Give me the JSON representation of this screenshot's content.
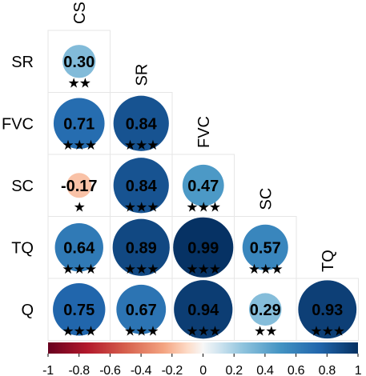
{
  "chart_data": {
    "type": "heatmap",
    "style": "lower-triangle correlation plot with sized circles",
    "variables": [
      "CS",
      "SR",
      "FVC",
      "SC",
      "TQ",
      "Q"
    ],
    "cells": [
      {
        "row": "SR",
        "col": "CS",
        "value": 0.3,
        "label": "0.30",
        "stars": "★★"
      },
      {
        "row": "FVC",
        "col": "CS",
        "value": 0.71,
        "label": "0.71",
        "stars": "★★★"
      },
      {
        "row": "FVC",
        "col": "SR",
        "value": 0.84,
        "label": "0.84",
        "stars": "★★★"
      },
      {
        "row": "SC",
        "col": "CS",
        "value": -0.17,
        "label": "-0.17",
        "stars": "★"
      },
      {
        "row": "SC",
        "col": "SR",
        "value": 0.84,
        "label": "0.84",
        "stars": "★★★"
      },
      {
        "row": "SC",
        "col": "FVC",
        "value": 0.47,
        "label": "0.47",
        "stars": "★★★"
      },
      {
        "row": "TQ",
        "col": "CS",
        "value": 0.64,
        "label": "0.64",
        "stars": "★★★"
      },
      {
        "row": "TQ",
        "col": "SR",
        "value": 0.89,
        "label": "0.89",
        "stars": "★★★"
      },
      {
        "row": "TQ",
        "col": "FVC",
        "value": 0.99,
        "label": "0.99",
        "stars": "★★★"
      },
      {
        "row": "TQ",
        "col": "SC",
        "value": 0.57,
        "label": "0.57",
        "stars": "★★★"
      },
      {
        "row": "Q",
        "col": "CS",
        "value": 0.75,
        "label": "0.75",
        "stars": "★★★"
      },
      {
        "row": "Q",
        "col": "SR",
        "value": 0.67,
        "label": "0.67",
        "stars": "★★★"
      },
      {
        "row": "Q",
        "col": "FVC",
        "value": 0.94,
        "label": "0.94",
        "stars": "★★★"
      },
      {
        "row": "Q",
        "col": "SC",
        "value": 0.29,
        "label": "0.29",
        "stars": "★★"
      },
      {
        "row": "Q",
        "col": "TQ",
        "value": 0.93,
        "label": "0.93",
        "stars": "★★★"
      }
    ],
    "colorbar": {
      "range": [
        -1,
        1
      ],
      "ticks": [
        "-1",
        "-0.8",
        "-0.6",
        "-0.4",
        "-0.2",
        "0",
        "0.2",
        "0.4",
        "0.6",
        "0.8",
        "1"
      ],
      "tick_values": [
        -1,
        -0.8,
        -0.6,
        -0.4,
        -0.2,
        0,
        0.2,
        0.4,
        0.6,
        0.8,
        1
      ],
      "colors": {
        "negative_end": "#67001f",
        "mid": "#f7f7f7",
        "positive_end": "#053061"
      }
    },
    "grid": true,
    "legend_placement": "bottom"
  }
}
